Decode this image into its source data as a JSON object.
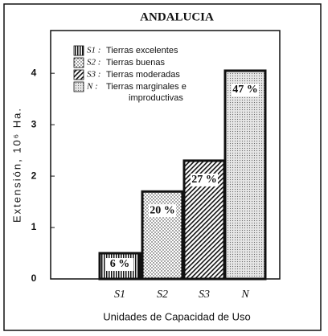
{
  "chart_data": {
    "type": "bar",
    "title": "ANDALUCIA",
    "categories": [
      "S1",
      "S2",
      "S3",
      "N"
    ],
    "values": [
      0.5,
      1.7,
      2.3,
      4.05
    ],
    "percent_labels": [
      "6 %",
      "20 %",
      "27 %",
      "47 %"
    ],
    "patterns": [
      "vertical",
      "dots",
      "diagonal",
      "fine-dots"
    ],
    "color": "#111111",
    "ylim": [
      0,
      4.8
    ],
    "yticks": [
      0,
      1,
      2,
      3,
      4
    ],
    "ylabel": "Extensión, 10⁶ Ha.",
    "xlabel": "Unidades de Capacidad de Uso",
    "legend": [
      {
        "code": "S1 :",
        "label": [
          "Tierras excelentes"
        ]
      },
      {
        "code": "S2 :",
        "label": [
          "Tierras buenas"
        ]
      },
      {
        "code": "S3 :",
        "label": [
          "Tierras moderadas"
        ]
      },
      {
        "code": "N :",
        "label": [
          "Tierras marginales e",
          "improductivas"
        ]
      }
    ]
  }
}
